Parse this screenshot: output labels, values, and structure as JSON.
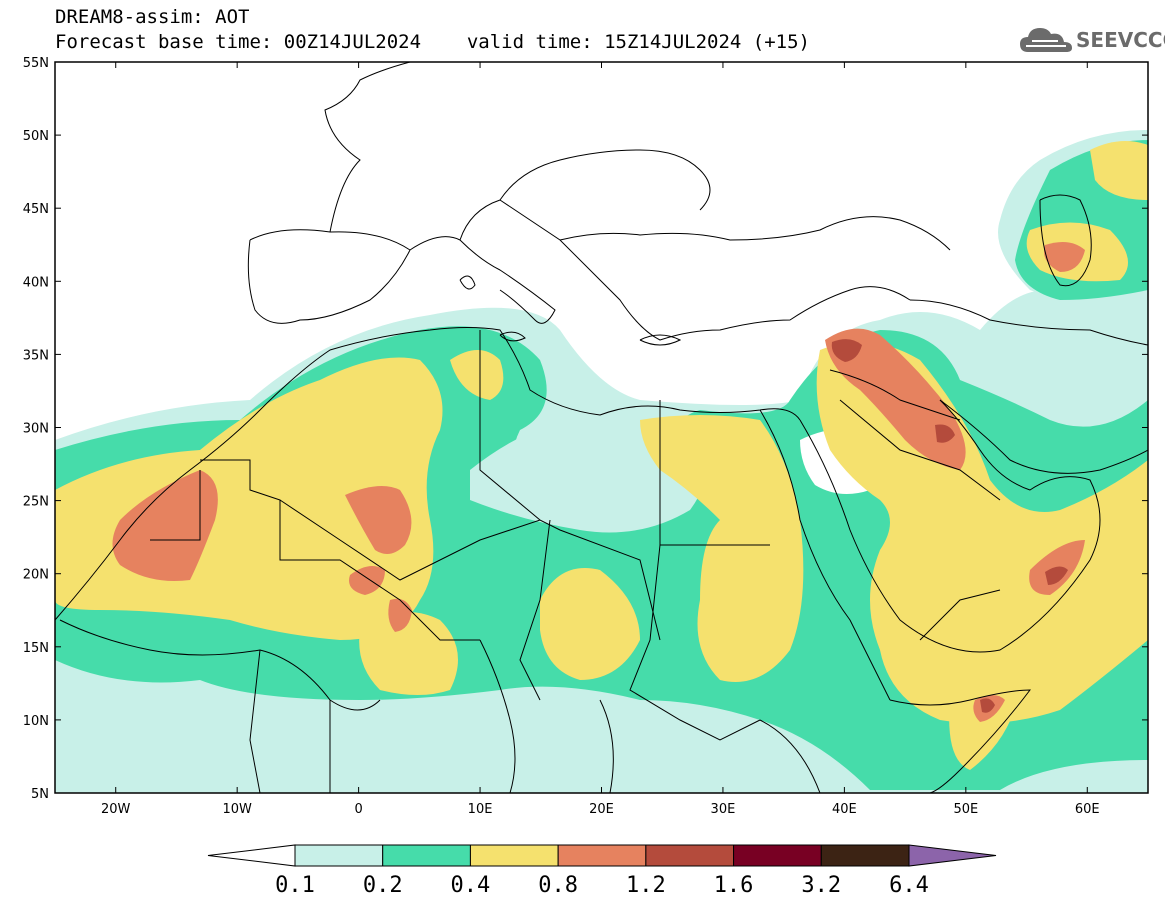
{
  "header": {
    "model_line": "DREAM8-assim: AOT",
    "base_time_line": "Forecast base time: 00Z14JUL2024",
    "valid_time_line": "valid time: 15Z14JUL2024 (+15)"
  },
  "logo": {
    "text": "SEEVCCC",
    "icon": "cloud-logo-icon",
    "color": "#6b6b6b"
  },
  "axes": {
    "lat_labels": [
      "55N",
      "50N",
      "45N",
      "40N",
      "35N",
      "30N",
      "25N",
      "20N",
      "15N",
      "10N",
      "5N"
    ],
    "lon_labels": [
      "20W",
      "10W",
      "0",
      "10E",
      "20E",
      "30E",
      "40E",
      "50E",
      "60E"
    ]
  },
  "colorbar": {
    "labels": [
      "0.1",
      "0.2",
      "0.4",
      "0.8",
      "1.2",
      "1.6",
      "3.2",
      "6.4"
    ],
    "colors": [
      "#ffffff",
      "#c8f0e8",
      "#46dcaa",
      "#f5e16e",
      "#e6825f",
      "#b44b3c",
      "#780023",
      "#3c2314",
      "#8c64aa"
    ]
  },
  "palette": {
    "c1": "#c8f0e8",
    "c2": "#46dcaa",
    "c3": "#f5e16e",
    "c4": "#e6825f",
    "c5": "#b44b3c",
    "c6": "#780023",
    "land_line": "#000000"
  }
}
